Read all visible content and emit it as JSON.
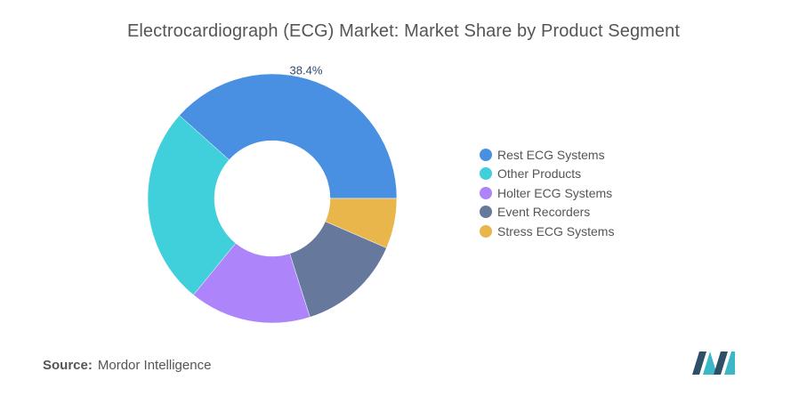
{
  "chart_data": {
    "type": "pie",
    "title": "Electrocardiograph (ECG) Market: Market Share by Product Segment",
    "categories": [
      "Rest ECG Systems",
      "Other Products",
      "Holter ECG Systems",
      "Event Recorders",
      "Stress ECG Systems"
    ],
    "values": [
      38.4,
      25.7,
      15.8,
      13.6,
      6.5
    ],
    "colors": [
      "#4a90e2",
      "#3fd0dc",
      "#ad84f9",
      "#66799d",
      "#e9b64c"
    ],
    "data_labels": [
      "38.4%",
      "",
      "",
      "",
      ""
    ],
    "donut": true,
    "legend_position": "right"
  },
  "source": {
    "prefix": "Source:",
    "text": "Mordor Intelligence"
  },
  "brand": {
    "logo_name": "mordor-intelligence-logo",
    "colors": [
      "#2f4f66",
      "#3db6c8"
    ]
  }
}
